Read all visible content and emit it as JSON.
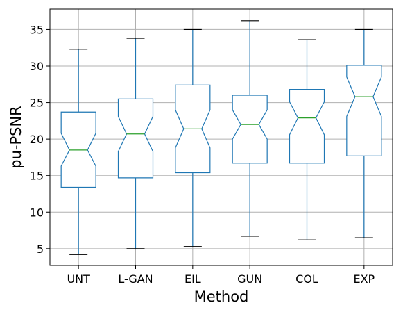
{
  "chart_data": {
    "type": "box",
    "notched": true,
    "xlabel": "Method",
    "ylabel": "pu-PSNR",
    "ylim": [
      2.7,
      37.8
    ],
    "yticks": [
      5,
      10,
      15,
      20,
      25,
      30,
      35
    ],
    "grid": true,
    "categories": [
      "UNT",
      "L-GAN",
      "EIL",
      "GUN",
      "COL",
      "EXP"
    ],
    "boxes": [
      {
        "category": "UNT",
        "whislo": 4.2,
        "q1": 13.4,
        "med": 18.5,
        "q3": 23.7,
        "whishi": 32.3,
        "cilo": 16.3,
        "cihi": 20.8
      },
      {
        "category": "L-GAN",
        "whislo": 5.0,
        "q1": 14.7,
        "med": 20.7,
        "q3": 25.5,
        "whishi": 33.8,
        "cilo": 18.3,
        "cihi": 23.1
      },
      {
        "category": "EIL",
        "whislo": 5.3,
        "q1": 15.4,
        "med": 21.4,
        "q3": 27.4,
        "whishi": 35.0,
        "cilo": 18.8,
        "cihi": 24.0
      },
      {
        "category": "GUN",
        "whislo": 6.7,
        "q1": 16.7,
        "med": 22.0,
        "q3": 26.0,
        "whishi": 36.2,
        "cilo": 20.0,
        "cihi": 24.0
      },
      {
        "category": "COL",
        "whislo": 6.2,
        "q1": 16.7,
        "med": 22.9,
        "q3": 26.8,
        "whishi": 33.6,
        "cilo": 20.6,
        "cihi": 25.1
      },
      {
        "category": "EXP",
        "whislo": 6.5,
        "q1": 17.7,
        "med": 25.8,
        "q3": 30.1,
        "whishi": 35.0,
        "cilo": 23.1,
        "cihi": 28.5
      }
    ],
    "colors": {
      "box": "#1f77b4",
      "median": "#2ca02c",
      "whisker": "#1f77b4",
      "cap": "#000000",
      "grid": "#b0b0b0",
      "axis": "#000000"
    }
  }
}
